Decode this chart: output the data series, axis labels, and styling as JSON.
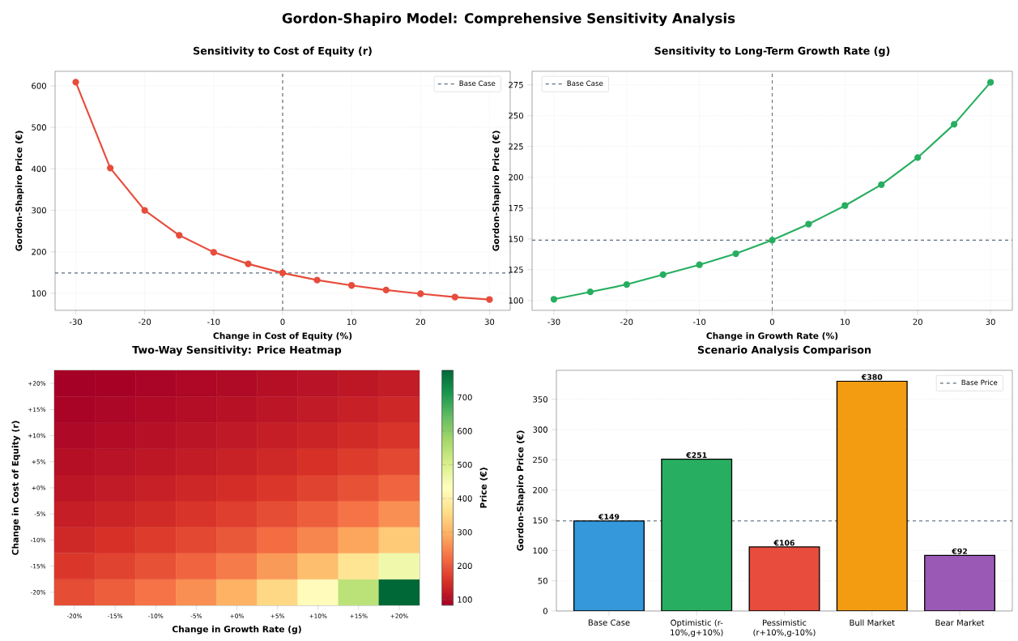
{
  "chart_data": [
    {
      "type": "other",
      "title": "Gordon-Shapiro Model: Comprehensive Sensitivity Analysis"
    },
    {
      "type": "line",
      "title": "Sensitivity to Cost of Equity (r)",
      "xlabel": "Change in Cost of Equity (%)",
      "ylabel": "Gordon-Shapiro Price (€)",
      "x": [
        -30,
        -25,
        -20,
        -15,
        -10,
        -5,
        0,
        5,
        10,
        15,
        20,
        25,
        30
      ],
      "series": [
        {
          "color": "#e74c3c",
          "values": [
            609,
            402,
            300,
            240,
            199,
            171,
            149,
            132,
            119,
            108,
            99,
            91,
            85
          ]
        }
      ],
      "marker": "circle",
      "line_style": "solid",
      "xlim": [
        -33,
        33
      ],
      "ylim": [
        59,
        635
      ],
      "xticks": [
        -30,
        -20,
        -10,
        0,
        10,
        20,
        30
      ],
      "yticks": [
        100,
        200,
        300,
        400,
        500,
        600
      ],
      "grid": true,
      "legend": "top right",
      "ref_lines": [
        {
          "axis": "y",
          "value": 149,
          "label": "Base Case",
          "color": "#5d6d7e",
          "line_style": "dashed"
        },
        {
          "axis": "x",
          "value": 0,
          "color": "#5d6d7e",
          "line_style": "dashed"
        }
      ]
    },
    {
      "type": "line",
      "title": "Sensitivity to Long-Term Growth Rate (g)",
      "xlabel": "Change in Growth Rate (%)",
      "ylabel": "Gordon-Shapiro Price (€)",
      "x": [
        -30,
        -25,
        -20,
        -15,
        -10,
        -5,
        0,
        5,
        10,
        15,
        20,
        25,
        30
      ],
      "series": [
        {
          "color": "#27ae60",
          "values": [
            101,
            107,
            113,
            121,
            129,
            138,
            149,
            162,
            177,
            194,
            216,
            243,
            277
          ]
        }
      ],
      "marker": "circle",
      "line_style": "solid",
      "xlim": [
        -33,
        33
      ],
      "ylim": [
        92,
        286
      ],
      "xticks": [
        -30,
        -20,
        -10,
        0,
        10,
        20,
        30
      ],
      "yticks": [
        100,
        125,
        150,
        175,
        200,
        225,
        250,
        275
      ],
      "grid": true,
      "legend": "top left",
      "ref_lines": [
        {
          "axis": "y",
          "value": 149,
          "label": "Base Case",
          "color": "#5d6d7e",
          "line_style": "dashed"
        },
        {
          "axis": "x",
          "value": 0,
          "color": "#5d6d7e",
          "line_style": "dashed"
        }
      ]
    },
    {
      "type": "heatmap",
      "title": "Two-Way Sensitivity: Price Heatmap",
      "xlabel": "Change in Growth Rate (g)",
      "ylabel": "Change in Cost of Equity (r)",
      "clabel": "Price (€)",
      "categories": [
        "-20%",
        "-15%",
        "-10%",
        "-5%",
        "+0%",
        "+5%",
        "+10%",
        "+15%",
        "+20%"
      ],
      "y_categories": [
        "+20%",
        "+15%",
        "+10%",
        "+5%",
        "+0%",
        "-5%",
        "-10%",
        "-15%",
        "-20%"
      ],
      "cells": [
        [
          83,
          86,
          90,
          95,
          99,
          105,
          110,
          117,
          124
        ],
        [
          89,
          93,
          98,
          103,
          108,
          115,
          122,
          130,
          139
        ],
        [
          96,
          101,
          106,
          113,
          119,
          127,
          135,
          145,
          157
        ],
        [
          105,
          110,
          117,
          124,
          132,
          142,
          153,
          166,
          181
        ],
        [
          115,
          122,
          130,
          139,
          149,
          161,
          175,
          192,
          213
        ],
        [
          127,
          135,
          145,
          157,
          170,
          186,
          206,
          229,
          259
        ],
        [
          142,
          153,
          166,
          181,
          199,
          221,
          248,
          284,
          331
        ],
        [
          161,
          175,
          192,
          213,
          238,
          271,
          314,
          373,
          459
        ],
        [
          186,
          206,
          229,
          259,
          298,
          351,
          426,
          542,
          780
        ]
      ],
      "clim": [
        83,
        780
      ],
      "cticks": [
        100,
        200,
        300,
        400,
        500,
        600,
        700
      ]
    },
    {
      "type": "bar",
      "title": "Scenario Analysis Comparison",
      "ylabel": "Gordon-Shapiro Price (€)",
      "categories": [
        "Base Case",
        "Optimistic (r-10%,g+10%)",
        "Pessimistic (r+10%,g-10%)",
        "Bull Market",
        "Bear Market"
      ],
      "values": [
        149,
        251,
        106,
        380,
        92
      ],
      "colors": [
        "#3498db",
        "#27ae60",
        "#e74c3c",
        "#f39c12",
        "#9b59b6"
      ],
      "value_labels": [
        "€149",
        "€251",
        "€106",
        "€380",
        "€92"
      ],
      "ylim": [
        0,
        398
      ],
      "yticks": [
        0,
        50,
        100,
        150,
        200,
        250,
        300,
        350
      ],
      "grid": "y",
      "legend": "top right",
      "ref_lines": [
        {
          "axis": "y",
          "value": 149,
          "label": "Base Price",
          "color": "#5d6d7e",
          "line_style": "dashed"
        }
      ]
    }
  ]
}
